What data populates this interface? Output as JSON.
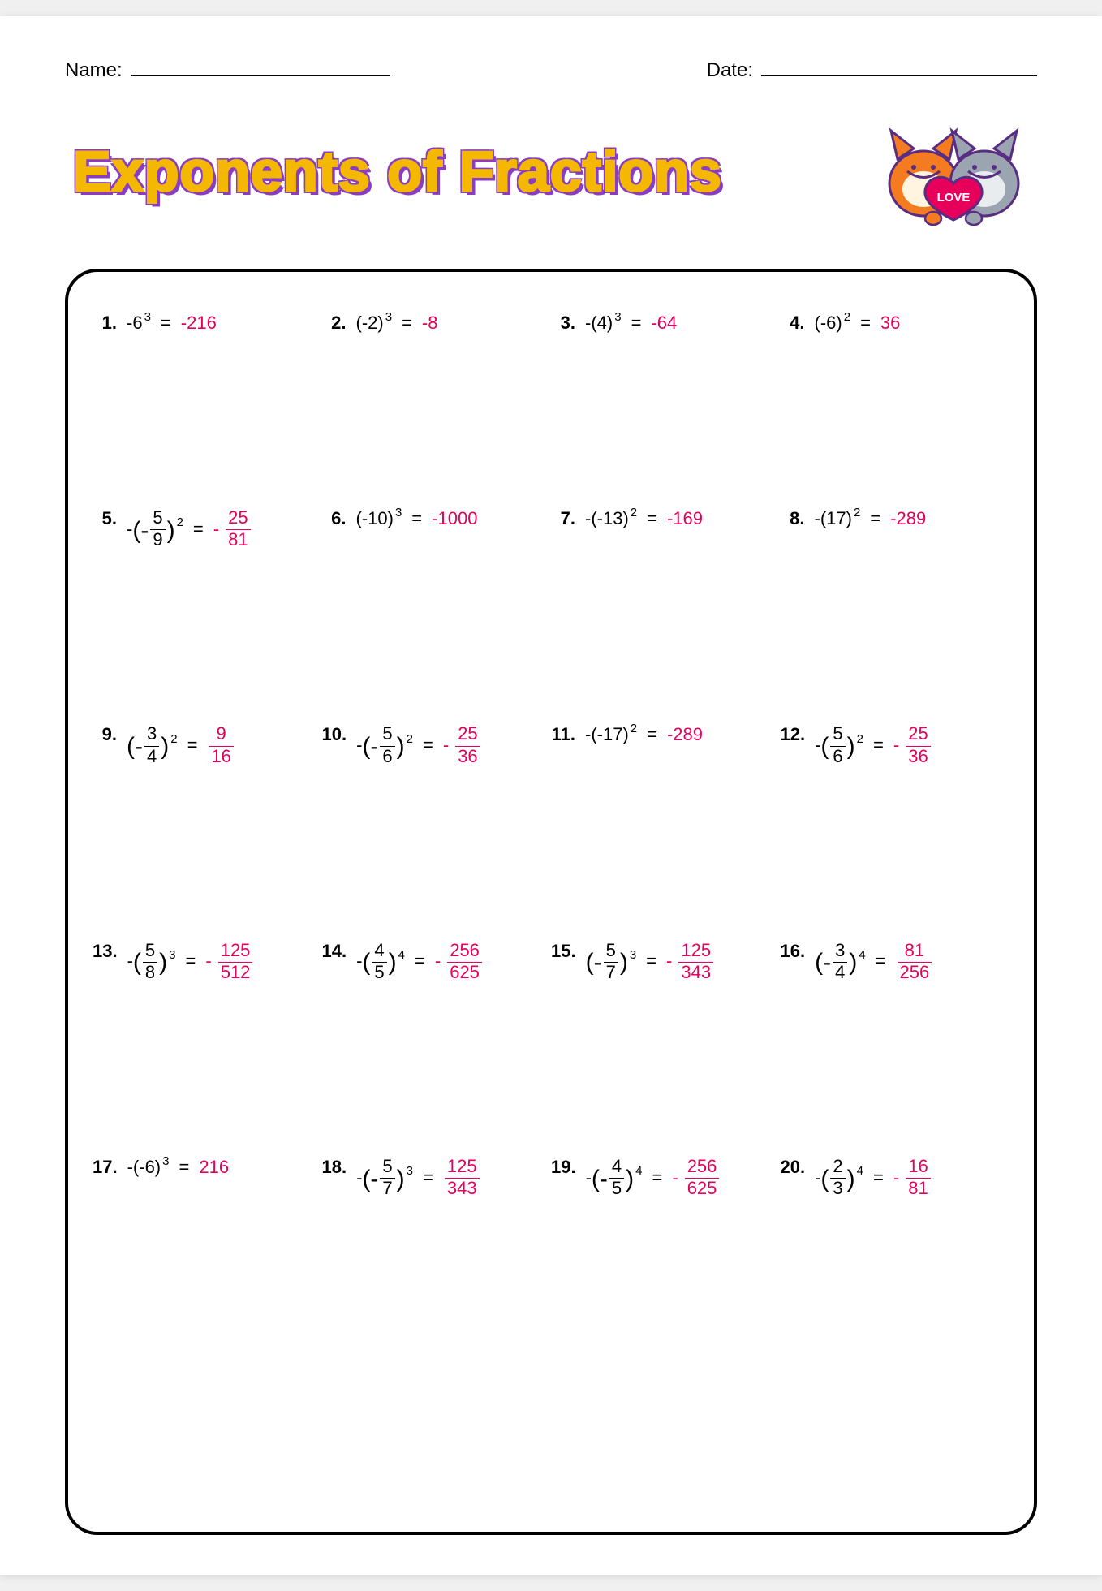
{
  "labels": {
    "name": "Name:",
    "date": "Date:"
  },
  "title": "Exponents of Fractions",
  "answer_color": "#e6005c",
  "problems": [
    {
      "n": "1.",
      "pre": "",
      "base": "-6",
      "exp": "3",
      "ans": {
        "type": "int",
        "neg": false,
        "val": "-216"
      }
    },
    {
      "n": "2.",
      "pre": "",
      "base": "(-2)",
      "exp": "3",
      "ans": {
        "type": "int",
        "neg": false,
        "val": "-8"
      }
    },
    {
      "n": "3.",
      "pre": "-",
      "base": "(4)",
      "exp": "3",
      "ans": {
        "type": "int",
        "neg": false,
        "val": "-64"
      }
    },
    {
      "n": "4.",
      "pre": "",
      "base": "(-6)",
      "exp": "2",
      "ans": {
        "type": "int",
        "neg": false,
        "val": "36"
      }
    },
    {
      "n": "5.",
      "pre": "-",
      "base_frac": {
        "pre": "(-",
        "num": "5",
        "den": "9",
        "post": ")"
      },
      "exp": "2",
      "ans": {
        "type": "frac",
        "neg": true,
        "num": "25",
        "den": "81"
      }
    },
    {
      "n": "6.",
      "pre": "",
      "base": "(-10)",
      "exp": "3",
      "ans": {
        "type": "int",
        "neg": false,
        "val": "-1000"
      }
    },
    {
      "n": "7.",
      "pre": "-",
      "base": "(-13)",
      "exp": "2",
      "ans": {
        "type": "int",
        "neg": false,
        "val": "-169"
      }
    },
    {
      "n": "8.",
      "pre": "-",
      "base": "(17)",
      "exp": "2",
      "ans": {
        "type": "int",
        "neg": false,
        "val": "-289"
      }
    },
    {
      "n": "9.",
      "pre": "",
      "base_frac": {
        "pre": "(-",
        "num": "3",
        "den": "4",
        "post": ")"
      },
      "exp": "2",
      "ans": {
        "type": "frac",
        "neg": false,
        "num": "9",
        "den": "16"
      }
    },
    {
      "n": "10.",
      "pre": "-",
      "base_frac": {
        "pre": "(-",
        "num": "5",
        "den": "6",
        "post": ")"
      },
      "exp": "2",
      "ans": {
        "type": "frac",
        "neg": true,
        "num": "25",
        "den": "36"
      }
    },
    {
      "n": "11.",
      "pre": "-",
      "base": "(-17)",
      "exp": "2",
      "ans": {
        "type": "int",
        "neg": false,
        "val": "-289"
      }
    },
    {
      "n": "12.",
      "pre": "-",
      "base_frac": {
        "pre": "(",
        "num": "5",
        "den": "6",
        "post": ")"
      },
      "exp": "2",
      "ans": {
        "type": "frac",
        "neg": true,
        "num": "25",
        "den": "36"
      }
    },
    {
      "n": "13.",
      "pre": "-",
      "base_frac": {
        "pre": "(",
        "num": "5",
        "den": "8",
        "post": ")"
      },
      "exp": "3",
      "ans": {
        "type": "frac",
        "neg": true,
        "num": "125",
        "den": "512"
      }
    },
    {
      "n": "14.",
      "pre": "-",
      "base_frac": {
        "pre": "(",
        "num": "4",
        "den": "5",
        "post": ")"
      },
      "exp": "4",
      "ans": {
        "type": "frac",
        "neg": true,
        "num": "256",
        "den": "625"
      }
    },
    {
      "n": "15.",
      "pre": "",
      "base_frac": {
        "pre": "(-",
        "num": "5",
        "den": "7",
        "post": ")"
      },
      "exp": "3",
      "ans": {
        "type": "frac",
        "neg": true,
        "num": "125",
        "den": "343"
      }
    },
    {
      "n": "16.",
      "pre": "",
      "base_frac": {
        "pre": "(-",
        "num": "3",
        "den": "4",
        "post": ")"
      },
      "exp": "4",
      "ans": {
        "type": "frac",
        "neg": false,
        "num": "81",
        "den": "256"
      }
    },
    {
      "n": "17.",
      "pre": "-",
      "base": "(-6)",
      "exp": "3",
      "ans": {
        "type": "int",
        "neg": false,
        "val": "216"
      }
    },
    {
      "n": "18.",
      "pre": "-",
      "base_frac": {
        "pre": "(-",
        "num": "5",
        "den": "7",
        "post": ")"
      },
      "exp": "3",
      "ans": {
        "type": "frac",
        "neg": false,
        "num": "125",
        "den": "343"
      }
    },
    {
      "n": "19.",
      "pre": "-",
      "base_frac": {
        "pre": "(-",
        "num": "4",
        "den": "5",
        "post": ")"
      },
      "exp": "4",
      "ans": {
        "type": "frac",
        "neg": true,
        "num": "256",
        "den": "625"
      }
    },
    {
      "n": "20.",
      "pre": "-",
      "base_frac": {
        "pre": "(",
        "num": "2",
        "den": "3",
        "post": ")"
      },
      "exp": "4",
      "ans": {
        "type": "frac",
        "neg": true,
        "num": "16",
        "den": "81"
      }
    }
  ]
}
